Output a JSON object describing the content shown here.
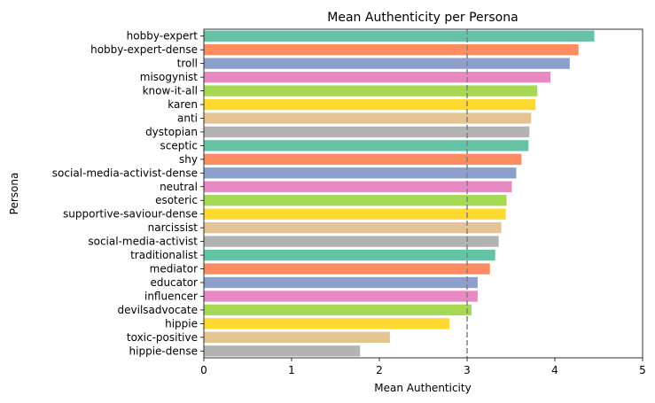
{
  "chart_data": {
    "type": "bar",
    "orientation": "horizontal",
    "title": "Mean Authenticity per Persona",
    "xlabel": "Mean Authenticity",
    "ylabel": "Persona",
    "xlim": [
      0,
      5
    ],
    "xticks": [
      0,
      1,
      2,
      3,
      4,
      5
    ],
    "grid": false,
    "legend": "none",
    "reference_line": {
      "x": 3,
      "style": "dashed",
      "color": "#808080"
    },
    "categories": [
      "hobby-expert",
      "hobby-expert-dense",
      "troll",
      "misogynist",
      "know-it-all",
      "karen",
      "anti",
      "dystopian",
      "sceptic",
      "shy",
      "social-media-activist-dense",
      "neutral",
      "esoteric",
      "supportive-saviour-dense",
      "narcissist",
      "social-media-activist",
      "traditionalist",
      "mediator",
      "educator",
      "influencer",
      "devilsadvocate",
      "hippie",
      "toxic-positive",
      "hippie-dense"
    ],
    "values": [
      4.45,
      4.27,
      4.17,
      3.95,
      3.8,
      3.78,
      3.73,
      3.71,
      3.7,
      3.62,
      3.56,
      3.51,
      3.45,
      3.44,
      3.39,
      3.36,
      3.32,
      3.26,
      3.12,
      3.12,
      3.05,
      2.8,
      2.12,
      1.78
    ],
    "palette": [
      "#66c2a5",
      "#fc8d62",
      "#8da0cb",
      "#e78ac3",
      "#a6d854",
      "#ffd92f",
      "#e5c494",
      "#b3b3b3"
    ]
  }
}
